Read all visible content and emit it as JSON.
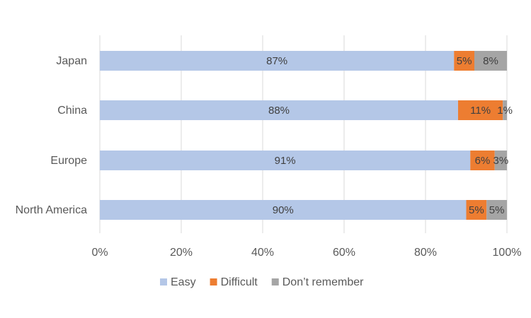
{
  "chart_data": {
    "type": "bar",
    "orientation": "horizontal",
    "stacked": "percent",
    "categories": [
      "Japan",
      "China",
      "Europe",
      "North America"
    ],
    "series": [
      {
        "name": "Easy",
        "color": "#b4c7e7",
        "values": [
          87,
          88,
          91,
          90
        ],
        "labels": [
          "87%",
          "88%",
          "91%",
          "90%"
        ]
      },
      {
        "name": "Difficult",
        "color": "#ed7d31",
        "values": [
          5,
          11,
          6,
          5
        ],
        "labels": [
          "5%",
          "11%",
          "6%",
          "5%"
        ]
      },
      {
        "name": "Don’t remember",
        "color": "#a5a5a5",
        "values": [
          8,
          1,
          3,
          5
        ],
        "labels": [
          "8%",
          "1%",
          "3%",
          "5%"
        ]
      }
    ],
    "xlim": [
      0,
      100
    ],
    "xticks": [
      "0%",
      "20%",
      "40%",
      "60%",
      "80%",
      "100%"
    ],
    "grid": true,
    "legend_position": "bottom"
  }
}
